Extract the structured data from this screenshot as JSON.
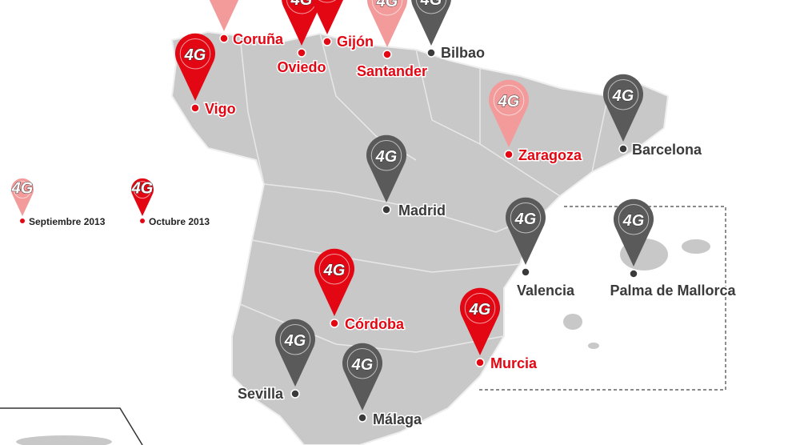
{
  "colors": {
    "octubre": "#e30613",
    "septiembre": "#f39a9a",
    "existing": "#5a5a5a",
    "land": "#c8c8c8",
    "border": "#ffffff"
  },
  "pin_badge": "4G",
  "legend": [
    {
      "label": "Septiembre 2013",
      "status": "septiembre"
    },
    {
      "label": "Octubre 2013",
      "status": "octubre"
    }
  ],
  "cities": [
    {
      "name": "Coruña",
      "status": "septiembre"
    },
    {
      "name": "Oviedo",
      "status": "octubre"
    },
    {
      "name": "Gijón",
      "status": "octubre"
    },
    {
      "name": "Santander",
      "status": "septiembre"
    },
    {
      "name": "Bilbao",
      "status": "existing"
    },
    {
      "name": "Vigo",
      "status": "octubre"
    },
    {
      "name": "Zaragoza",
      "status": "septiembre"
    },
    {
      "name": "Barcelona",
      "status": "existing"
    },
    {
      "name": "Madrid",
      "status": "existing"
    },
    {
      "name": "Valencia",
      "status": "existing"
    },
    {
      "name": "Palma de Mallorca",
      "status": "existing"
    },
    {
      "name": "Córdoba",
      "status": "octubre"
    },
    {
      "name": "Murcia",
      "status": "octubre"
    },
    {
      "name": "Sevilla",
      "status": "existing"
    },
    {
      "name": "Málaga",
      "status": "existing"
    }
  ]
}
